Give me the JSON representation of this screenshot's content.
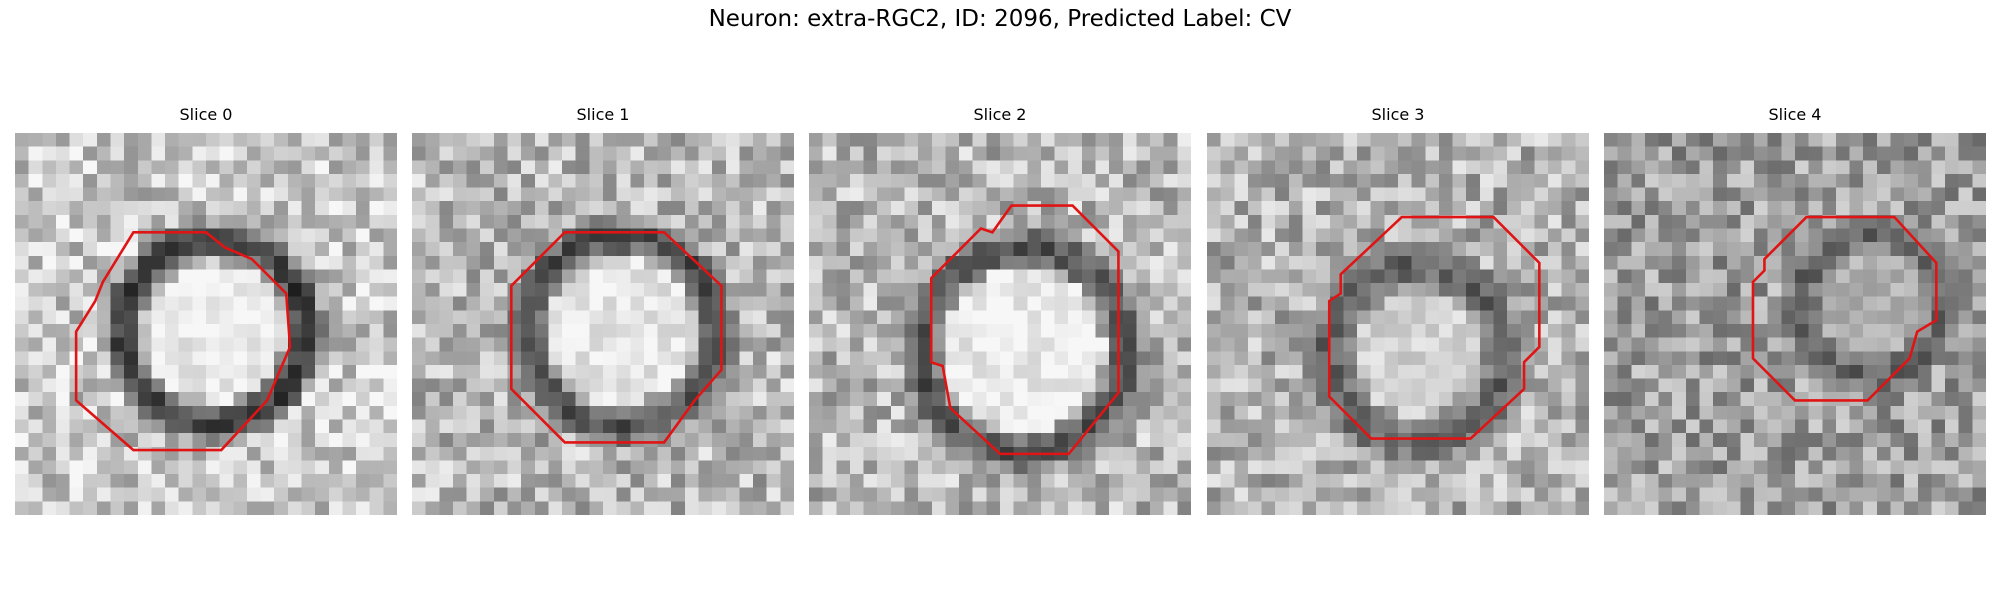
{
  "figure": {
    "suptitle": "Neuron: extra-RGC2, ID: 2096, Predicted Label: CV",
    "contour_color": "#e01414"
  },
  "panels": [
    {
      "title": "Slice 0"
    },
    {
      "title": "Slice 1"
    },
    {
      "title": "Slice 2"
    },
    {
      "title": "Slice 3"
    },
    {
      "title": "Slice 4"
    }
  ]
}
